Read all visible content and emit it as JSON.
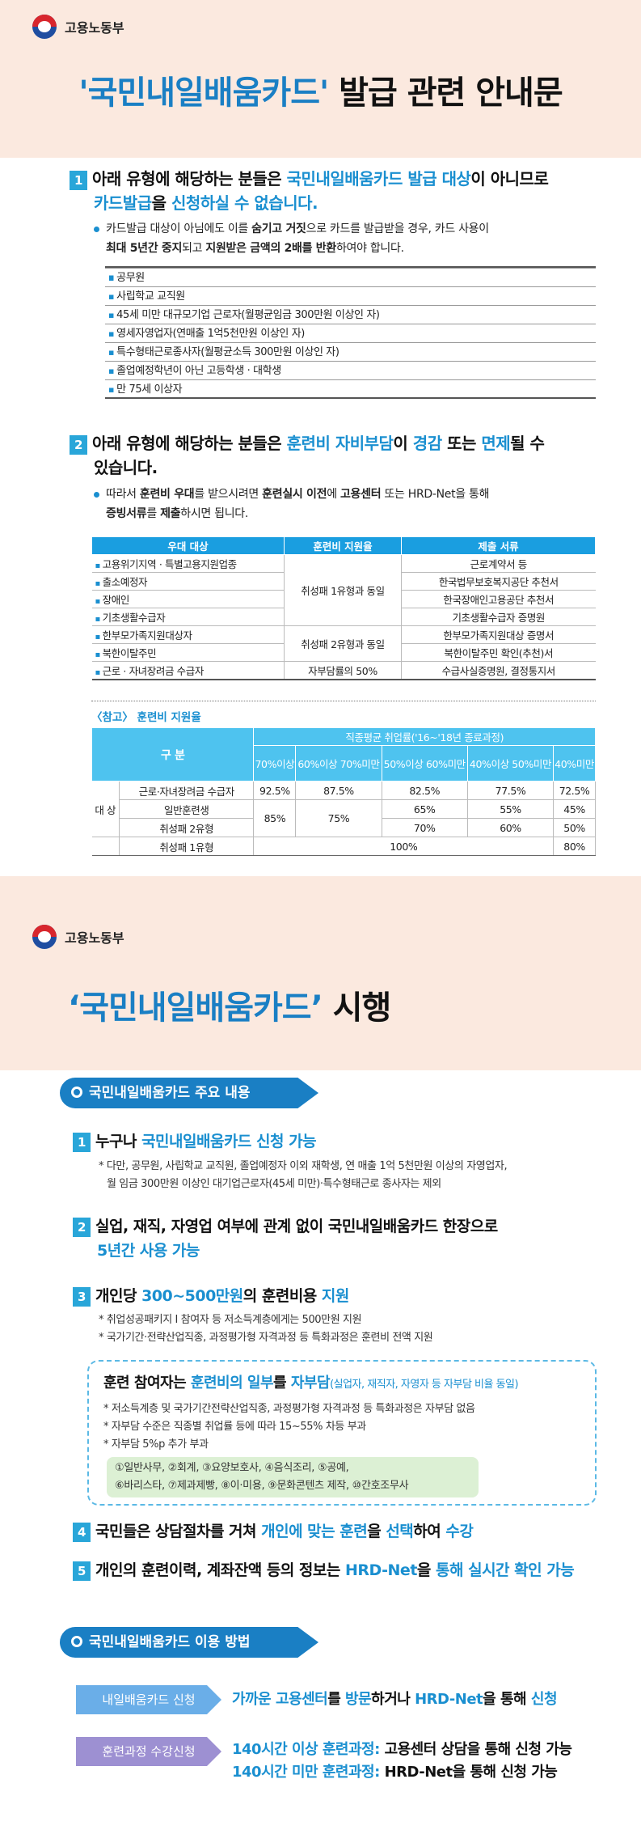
{
  "ministry": "고용노동부",
  "section1": {
    "title_part1": "'국민내일배움카드'",
    "title_part2": " 발급 관련 안내문",
    "item1": {
      "num": "1",
      "text_a": "아래 유형에 해당하는 분들은 ",
      "text_b": "국민내일배움카드 발급 대상",
      "text_c": "이 아니므로",
      "text_d": "카드발급",
      "text_e": "을 ",
      "text_f": "신청하실 수 없습니다.",
      "bullet_a": "카드발급 대상이 아님에도 이를 ",
      "bullet_b": "숨기고 거짓",
      "bullet_c": "으로 카드를 발급받을 경우, 카드 사용이",
      "bullet_d": "최대 5년간 중지",
      "bullet_e": "되고 ",
      "bullet_f": "지원받은 금액의 2배를 반환",
      "bullet_g": "하여야 합니다.",
      "list": [
        "공무원",
        "사립학교 교직원",
        "45세 미만 대규모기업 근로자(월평균임금 300만원 이상인 자)",
        "영세자영업자(연매출 1억5천만원 이상인 자)",
        "특수형태근로종사자(월평균소득 300만원 이상인 자)",
        "졸업예정학년이 아닌 고등학생 · 대학생",
        "만 75세 이상자"
      ]
    },
    "item2": {
      "num": "2",
      "text_a": "아래 유형에 해당하는 분들은 ",
      "text_b": "훈련비 자비부담",
      "text_c": "이 ",
      "text_d": "경감",
      "text_e": " 또는 ",
      "text_f": "면제",
      "text_g": "될 수",
      "text_h": "있습니다.",
      "bullet_a": "따라서 ",
      "bullet_b": "훈련비 우대",
      "bullet_c": "를 받으시려면 ",
      "bullet_d": "훈련실시 이전",
      "bullet_e": "에 ",
      "bullet_f": "고용센터",
      "bullet_g": " 또는 HRD-Net을 통해",
      "bullet_h": "증빙서류",
      "bullet_i": "를 ",
      "bullet_j": "제출",
      "bullet_k": "하시면 됩니다."
    },
    "table1": {
      "headers": [
        "우대 대상",
        "훈련비 지원율",
        "제출 서류"
      ],
      "targets": [
        "고용위기지역 · 특별고용지원업종",
        "출소예정자",
        "장애인",
        "기초생활수급자",
        "한부모가족지원대상자",
        "북한이탈주민",
        "근로 · 자녀장려금 수급자"
      ],
      "rate1": "취성패 1유형과 동일",
      "rate2": "취성패 2유형과 동일",
      "rate3": "자부담률의 50%",
      "docs": [
        "근로계약서 등",
        "한국법무보호복지공단 추천서",
        "한국장애인고용공단 추천서",
        "기초생활수급자 증명원",
        "한부모가족지원대상 증명서",
        "북한이탈주민 확인(추천)서",
        "수급사실증명원, 결정통지서"
      ]
    },
    "ref_label": "〈참고〉 훈련비 지원율",
    "table2": {
      "col_gubun": "구 분",
      "col_group": "직종평균 취업률('16~'18년 종료과정)",
      "cols": [
        "70%이상",
        "60%이상 70%미만",
        "50%이상 60%미만",
        "40%이상 50%미만",
        "40%미만"
      ],
      "side": "대 상",
      "rows": [
        {
          "label": "근로·자녀장려금 수급자",
          "v": [
            "92.5%",
            "87.5%",
            "82.5%",
            "77.5%",
            "72.5%"
          ]
        },
        {
          "label": "일반훈련생",
          "v": [
            "85%",
            "75%",
            "65%",
            "55%",
            "45%"
          ]
        },
        {
          "label": "취성패 2유형",
          "v": [
            "",
            "",
            "70%",
            "60%",
            "50%"
          ]
        },
        {
          "label": "취성패 1유형",
          "v": [
            "100%",
            "80%"
          ]
        }
      ]
    }
  },
  "section2": {
    "title_part1": "‘국민내일배움카드’",
    "title_part2": " 시행",
    "pill1": "국민내일배움카드 주요 내용",
    "p1_a": "누구나 ",
    "p1_b": "국민내일배움카드 신청 가능",
    "p1_note1": "* 다만, 공무원, 사립학교 교직원, 졸업예정자 이외 재학생, 연 매출 1억 5천만원 이상의 자영업자,",
    "p1_note2": "월 임금 300만원 이상인 대기업근로자(45세 미만)·특수형태근로 종사자는 제외",
    "p2_a": "실업, 재직, 자영업 여부에 관계 없이 국민내일배움카드 한장으로",
    "p2_b": "5년간 사용 가능",
    "p3_a": "개인당 ",
    "p3_b": "300~500만원",
    "p3_c": "의 훈련비용 ",
    "p3_d": "지원",
    "p3_note1": "* 취업성공패키지 Ⅰ 참여자 등 저소득계층에게는 500만원 지원",
    "p3_note2": "* 국가기간·전략산업직종, 과정평가형 자격과정 등 특화과정은 훈련비 전액 지원",
    "box_a": "훈련 참여자는 ",
    "box_b": "훈련비의 일부",
    "box_c": "를 ",
    "box_d": "자부담",
    "box_e": "(실업자, 재직자, 자영자 등 자부담 비율 동일)",
    "box_note1": "* 저소득계층 및 국가기간전략산업직종, 과정평가형 자격과정 등 특화과정은 자부담 없음",
    "box_note2": "* 자부담 수준은 직종별 취업률 등에 따라 15~55% 차등 부과",
    "box_note3": "* 자부담 5%p 추가 부과",
    "jobs1": "①일반사무, ②회계, ③요양보호사, ④음식조리, ⑤공예,",
    "jobs2": "⑥바리스타, ⑦제과제빵, ⑧이·미용, ⑨문화콘텐츠 제작, ⑩간호조무사",
    "p4_a": "국민들은 상담절차를 거쳐 ",
    "p4_b": "개인에 맞는 훈련",
    "p4_c": "을 ",
    "p4_d": "선택",
    "p4_e": "하여 ",
    "p4_f": "수강",
    "p5_a": "개인의 훈련이력, 계좌잔액 등의 정보는 ",
    "p5_b": "HRD-Net",
    "p5_c": "을 ",
    "p5_d": "통해 실시간 확인 가능",
    "pill2": "국민내일배움카드 이용 방법",
    "use1_label": "내일배움카드 신청",
    "use1_a": "가까운 ",
    "use1_b": "고용센터",
    "use1_c": "를 ",
    "use1_d": "방문",
    "use1_e": "하거나 ",
    "use1_f": "HRD-Net",
    "use1_g": "을 통해 ",
    "use1_h": "신청",
    "use2_label": "훈련과정 수강신청",
    "use2_a": "140시간 이상 훈련과정:",
    "use2_b": " 고용센터 상담을 통해 신청 가능",
    "use2_c": "140시간 미만 훈련과정:",
    "use2_d": " HRD-Net을 통해 신청 가능",
    "nums": [
      "1",
      "2",
      "3",
      "4",
      "5"
    ]
  },
  "colors": {
    "accent": "#1a8fd0",
    "header_bg": "#fbe9df",
    "table_head": "#1a9ee0",
    "pill": "#1a7fc4"
  }
}
